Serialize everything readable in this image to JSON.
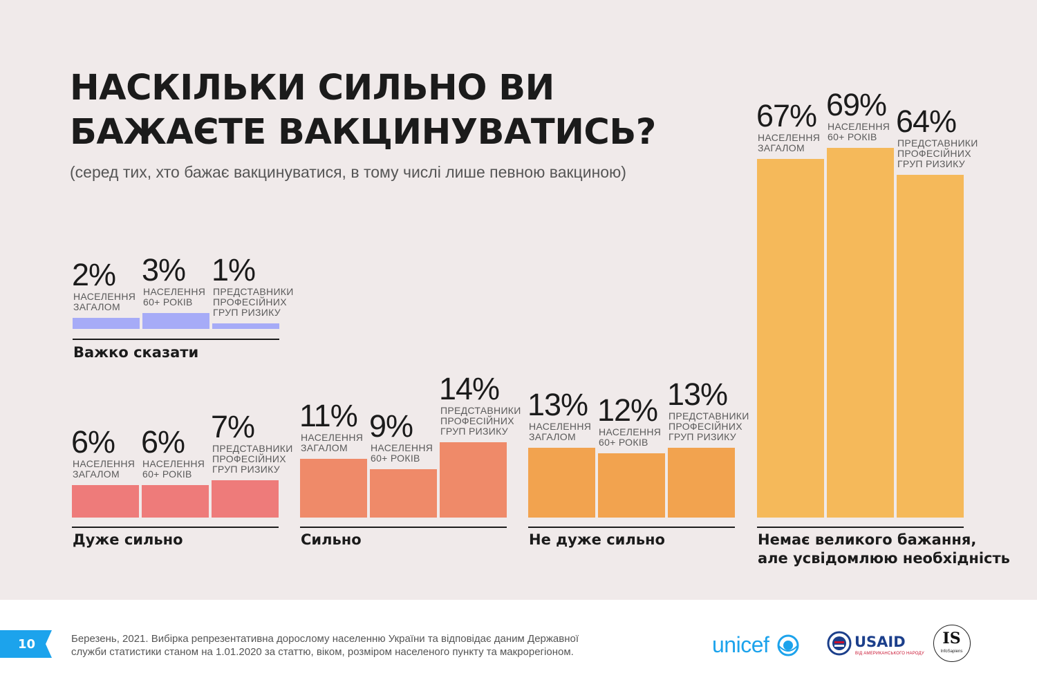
{
  "title_lines": [
    "НАСКІЛЬКИ СИЛЬНО ВИ",
    "БАЖАЄТЕ ВАКЦИНУВАТИСЬ?"
  ],
  "subtitle": "(серед тих, хто бажає вакцинуватися, в тому числі лише певною вакциною)",
  "chart_data": {
    "type": "bar",
    "unit": "%",
    "series": [
      {
        "name": "НАСЕЛЕННЯ ЗАГАЛОМ",
        "label_lines": [
          "НАСЕЛЕННЯ",
          "ЗАГАЛОМ"
        ]
      },
      {
        "name": "НАСЕЛЕННЯ 60+ РОКІВ",
        "label_lines": [
          "НАСЕЛЕННЯ",
          "60+ РОКІВ"
        ]
      },
      {
        "name": "ПРЕДСТАВНИКИ ПРОФЕСІЙНИХ ГРУП РИЗИКУ",
        "label_lines": [
          "ПРЕДСТАВНИКИ",
          "ПРОФЕСІЙНИХ",
          "ГРУП РИЗИКУ"
        ]
      }
    ],
    "categories": [
      {
        "name": "Важко сказати",
        "label_lines": [
          "Важко сказати"
        ],
        "values": [
          2,
          3,
          1
        ],
        "color": "#a6abf7"
      },
      {
        "name": "Дуже сильно",
        "label_lines": [
          "Дуже сильно"
        ],
        "values": [
          6,
          6,
          7
        ],
        "color": "#ee7b7a"
      },
      {
        "name": "Сильно",
        "label_lines": [
          "Сильно"
        ],
        "values": [
          11,
          9,
          14
        ],
        "color": "#ef8a69"
      },
      {
        "name": "Не дуже сильно",
        "label_lines": [
          "Не дуже сильно"
        ],
        "values": [
          13,
          12,
          13
        ],
        "color": "#f2a34f"
      },
      {
        "name": "Немає великого бажання, але усвідомлюю необхідність",
        "label_lines": [
          "Немає великого бажання,",
          "але усвідомлюю необхідність"
        ],
        "values": [
          67,
          69,
          64
        ],
        "color": "#f5b95a"
      }
    ]
  },
  "footer": {
    "page_number": "10",
    "note_lines": [
      "Березень, 2021. Вибірка репрезентативна дорослому населенню України та відповідає даним Державної",
      "служби статистики станом на 1.01.2020 за статтю, віком, розміром населеного пункту та макрорегіоном."
    ],
    "logos": {
      "unicef": "unicef",
      "usaid": "USAID",
      "usaid_sub": "ВІД АМЕРИКАНСЬКОГО НАРОДУ",
      "is": "IS",
      "is_sub": "InfoSapiens"
    }
  },
  "colors": {
    "background": "#f0eaea",
    "accent": "#1ca3ec",
    "usaid_blue": "#1b3f8b",
    "usaid_red": "#c8102e"
  }
}
